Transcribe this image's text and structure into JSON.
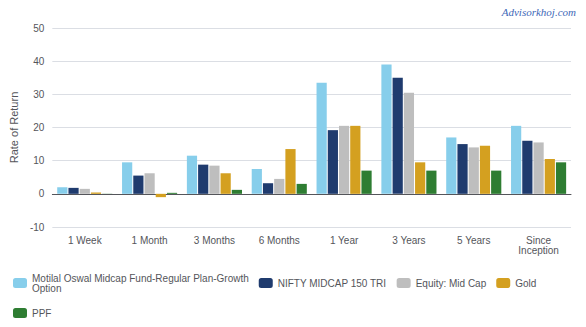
{
  "chart_data": {
    "type": "bar",
    "ylabel": "Rate of Return",
    "categories": [
      "1 Week",
      "1 Month",
      "3 Months",
      "6 Months",
      "1 Year",
      "3 Years",
      "5 Years",
      "Since\nInception"
    ],
    "series": [
      {
        "name": "Motilal Oswal Midcap Fund-Regular Plan-Growth\nOption",
        "color": "#87CEEB",
        "values": [
          2.0,
          9.5,
          11.5,
          7.5,
          33.5,
          39.0,
          17.0,
          20.5
        ]
      },
      {
        "name": "NIFTY MIDCAP 150 TRI",
        "color": "#1F3B6E",
        "values": [
          1.8,
          5.5,
          8.8,
          3.2,
          19.2,
          35.0,
          15.0,
          16.0
        ]
      },
      {
        "name": "Equity: Mid Cap",
        "color": "#BEBEBE",
        "values": [
          1.5,
          6.2,
          8.5,
          4.5,
          20.5,
          30.5,
          14.0,
          15.5
        ]
      },
      {
        "name": "Gold",
        "color": "#D4A020",
        "values": [
          0.4,
          -1.0,
          6.2,
          13.5,
          20.5,
          9.5,
          14.5,
          10.5
        ]
      },
      {
        "name": "PPF",
        "color": "#2E7D32",
        "values": [
          0.05,
          0.3,
          1.2,
          3.0,
          7.0,
          7.0,
          7.0,
          9.5
        ]
      }
    ],
    "ylim": [
      -10,
      50
    ],
    "yticks": [
      -10,
      0,
      10,
      20,
      30,
      40,
      50
    ],
    "grid": true,
    "legend": "lower left",
    "annotations": [
      "Advisorkhoj.com"
    ]
  }
}
